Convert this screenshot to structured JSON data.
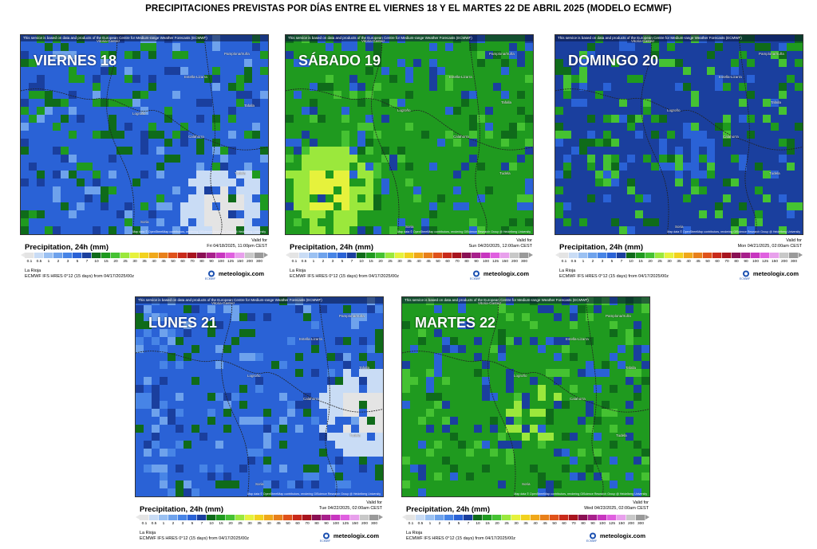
{
  "title": "PRECIPITACIONES PREVISTAS POR DÍAS ENTRE EL VIERNES 18 Y EL MARTES 22 DE ABRIL 2025 (MODELO ECMWF)",
  "common": {
    "disclaimer": "This service is based on data and products of the European Centre for Medium-range Weather Forecasts (ECMWF)",
    "map_attribution": "Map data © OpenStreetMap contributors, rendering GIScience Research Group @ Heidelberg University",
    "legend_title": "Precipitation, 24h (mm)",
    "valid_for_label": "Valid for",
    "region": "La Rioja",
    "model_run": "ECMWF IFS HRES 0°12 (15 days) from  04/17/2025/00z",
    "logo_text": "meteologix.com",
    "logo_sub": "ECMWF",
    "scale_ticks": [
      "0.1",
      "0.5",
      "1",
      "2",
      "3",
      "5",
      "7",
      "10",
      "15",
      "20",
      "25",
      "30",
      "35",
      "40",
      "45",
      "50",
      "60",
      "70",
      "80",
      "90",
      "100",
      "125",
      "150",
      "200",
      "300"
    ],
    "scale_colors": [
      "#e4e4e4",
      "#c9dcf5",
      "#9bc1f2",
      "#6ea2ec",
      "#4784e6",
      "#2a62d6",
      "#1a3f9e",
      "#0f6b1a",
      "#1f9a1f",
      "#45c232",
      "#9be83c",
      "#e6f23c",
      "#f2d21e",
      "#f0a81a",
      "#e8801a",
      "#e0521a",
      "#c92a1a",
      "#a8141e",
      "#8a1054",
      "#a8208c",
      "#c836c0",
      "#e060e0",
      "#e8a0ec",
      "#c8c8c8",
      "#9a9a9a"
    ],
    "cities": [
      "Vitoria-Gasteiz",
      "Pamplona/Iruña",
      "Logroño",
      "Estella-Lizarra",
      "Tafalla",
      "Calahorra",
      "Tudela",
      "Soria"
    ]
  },
  "panels": [
    {
      "day_label": "VIERNES 18",
      "valid": "Fri 04/18/2025, 11:00pm CEST",
      "base_color": "#2a62d6",
      "accent": [
        "#0f6b1a",
        "#1f9a1f",
        "#1a3f9e",
        "#6ea2ec"
      ],
      "light": [
        "#e4e4e4",
        "#c9dcf5"
      ]
    },
    {
      "day_label": "SÁBADO 19",
      "valid": "Sun 04/20/2025, 12:00am CEST",
      "base_color": "#1f9a1f",
      "accent": [
        "#45c232",
        "#1a3f9e",
        "#2a62d6",
        "#0f6b1a"
      ],
      "light": [
        "#e6f23c",
        "#9be83c"
      ]
    },
    {
      "day_label": "DOMINGO 20",
      "valid": "Mon 04/21/2025, 02:00am CEST",
      "base_color": "#1a3f9e",
      "accent": [
        "#1f9a1f",
        "#2a62d6",
        "#0f6b1a",
        "#45c232"
      ],
      "light": [
        "#2a62d6",
        "#1f9a1f"
      ]
    },
    {
      "day_label": "LUNES 21",
      "valid": "Tue 04/22/2025, 02:00am CEST",
      "base_color": "#2a62d6",
      "accent": [
        "#1a3f9e",
        "#4784e6",
        "#6ea2ec",
        "#0f6b1a"
      ],
      "light": [
        "#e4e4e4",
        "#c9dcf5"
      ]
    },
    {
      "day_label": "MARTES 22",
      "valid": "Wed 04/23/2025, 02:00am CEST",
      "base_color": "#1f9a1f",
      "accent": [
        "#45c232",
        "#1a3f9e",
        "#0f6b1a",
        "#2a62d6"
      ],
      "light": [
        "#9be83c",
        "#45c232"
      ]
    }
  ]
}
